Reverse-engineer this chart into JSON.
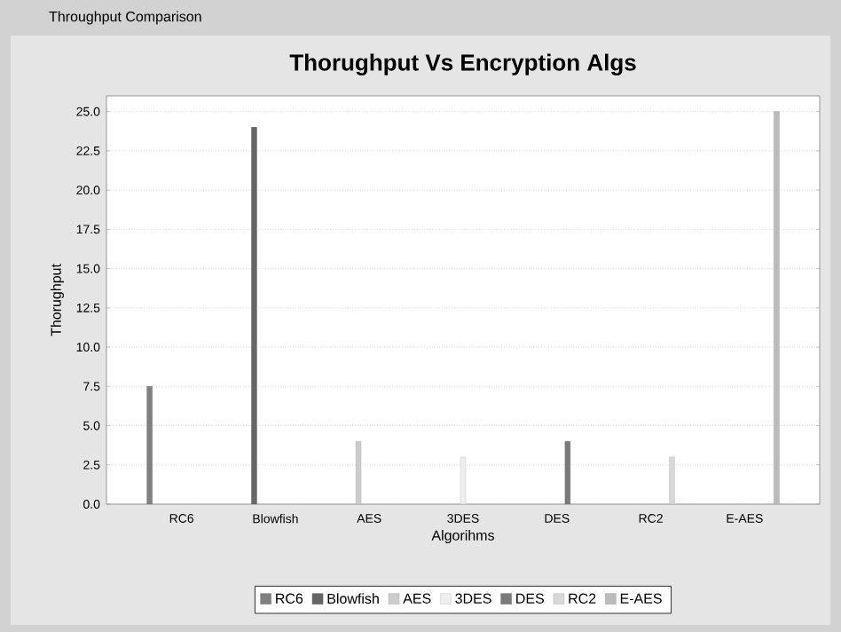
{
  "chart_data": {
    "type": "bar",
    "title": "Thorughput Vs Encryption Algs",
    "xlabel": "Algorihms",
    "ylabel": "Thorughput",
    "annotations": [
      "Throughput Comparison"
    ],
    "categories": [
      "RC6",
      "Blowfish",
      "AES",
      "3DES",
      "DES",
      "RC2",
      "E-AES"
    ],
    "series": [
      {
        "name": "RC6",
        "color": "#808080",
        "values": [
          7.5,
          null,
          null,
          null,
          null,
          null,
          null
        ]
      },
      {
        "name": "Blowfish",
        "color": "#666666",
        "values": [
          null,
          24,
          null,
          null,
          null,
          null,
          null
        ]
      },
      {
        "name": "AES",
        "color": "#cccccc",
        "values": [
          null,
          null,
          4,
          null,
          null,
          null,
          null
        ]
      },
      {
        "name": "3DES",
        "color": "#eeeeee",
        "values": [
          null,
          null,
          null,
          3,
          null,
          null,
          null
        ]
      },
      {
        "name": "DES",
        "color": "#7a7a7a",
        "values": [
          null,
          null,
          null,
          null,
          4,
          null,
          null
        ]
      },
      {
        "name": "RC2",
        "color": "#d8d8d8",
        "values": [
          null,
          null,
          null,
          null,
          null,
          3,
          null
        ]
      },
      {
        "name": "E-AES",
        "color": "#bbbbbb",
        "values": [
          null,
          null,
          null,
          null,
          null,
          null,
          25
        ]
      }
    ],
    "ylim": [
      0,
      26
    ],
    "yticks": [
      {
        "value": 0,
        "label": "0.0"
      },
      2.5,
      {
        "value": 5,
        "label": "5.0"
      },
      7.5,
      {
        "value": 10,
        "label": "10.0"
      },
      12.5,
      {
        "value": 15,
        "label": "15.0"
      },
      17.5,
      {
        "value": 20,
        "label": "20.0"
      },
      22.5,
      {
        "value": 25,
        "label": "25.0"
      }
    ],
    "grid": "y",
    "legend": "bottom"
  }
}
